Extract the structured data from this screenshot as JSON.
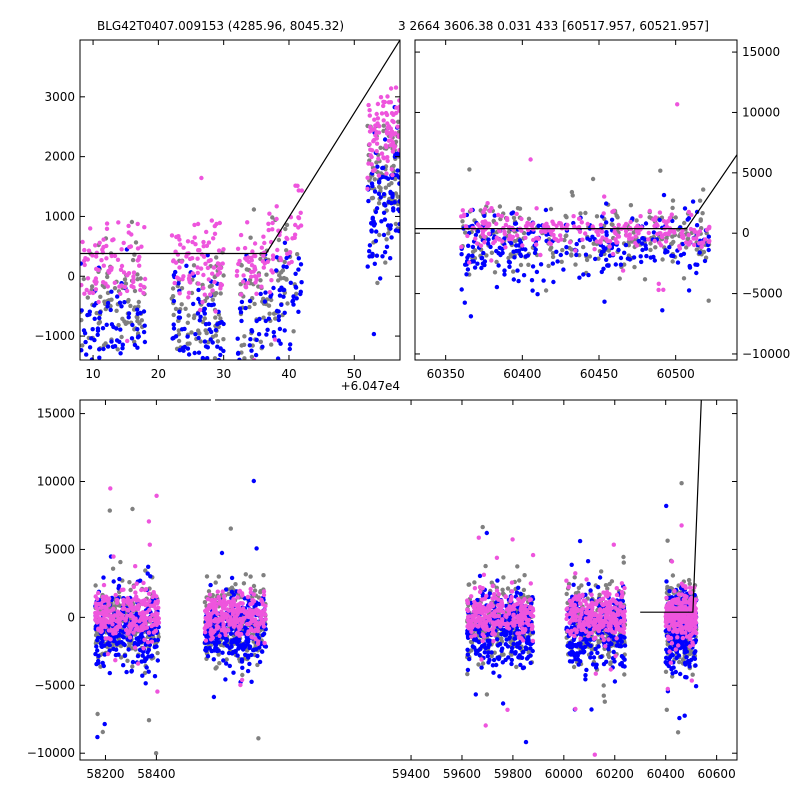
{
  "header": {
    "left": "BLG42T0407.009153 (4285.96, 8045.32)",
    "right": "3 2664 3606.38 0.031 433 [60517.957, 60521.957]"
  },
  "colors": {
    "grey": "#808080",
    "blue": "#0000ff",
    "magenta": "#ee55dd",
    "model": "#000000"
  },
  "chart_data": [
    {
      "id": "top-left",
      "type": "scatter",
      "xlim": [
        60478,
        60527
      ],
      "ylim": [
        -1400,
        3950
      ],
      "offset_label": "+6.047e4",
      "xticks": [
        60480,
        60490,
        60500,
        60510,
        60520
      ],
      "xticklabels": [
        "10",
        "20",
        "30",
        "40",
        "50"
      ],
      "yticks": [
        -1000,
        0,
        1000,
        2000,
        3000
      ],
      "yticklabels": [
        "−1000",
        "0",
        "1000",
        "2000",
        "3000"
      ],
      "groups_x": [
        [
          60478,
          60488
        ],
        [
          60492,
          60500
        ],
        [
          60502,
          60512
        ],
        [
          60522,
          60527
        ]
      ],
      "model": [
        [
          60478,
          380
        ],
        [
          60506.5,
          380
        ],
        [
          60527,
          3950
        ]
      ]
    },
    {
      "id": "top-right",
      "type": "scatter",
      "xlim": [
        60330,
        60540
      ],
      "ylim": [
        -10500,
        16000
      ],
      "yaxis_side": "right",
      "xticks": [
        60350,
        60400,
        60450,
        60500
      ],
      "xticklabels": [
        "60350",
        "60400",
        "60450",
        "60500"
      ],
      "yticks": [
        -10000,
        -5000,
        0,
        5000,
        10000,
        15000
      ],
      "yticklabels": [
        "−10000",
        "−5000",
        "0",
        "5000",
        "10000",
        "15000"
      ],
      "groups_x": [
        [
          60360,
          60522
        ]
      ],
      "model": [
        [
          60330,
          380
        ],
        [
          60507,
          380
        ],
        [
          60540,
          6500
        ]
      ]
    },
    {
      "id": "bottom",
      "type": "scatter",
      "xlim": [
        58100,
        60680
      ],
      "ylim": [
        -10500,
        16000
      ],
      "xticks": [
        58200,
        58400,
        59400,
        59600,
        59800,
        60000,
        60200,
        60400,
        60600
      ],
      "xticklabels": [
        "58200",
        "58400",
        "59400",
        "59600",
        "59800",
        "60000",
        "60200",
        "60400",
        "60600"
      ],
      "yticks": [
        -10000,
        -5000,
        0,
        5000,
        10000,
        15000
      ],
      "yticklabels": [
        "−10000",
        "−5000",
        "0",
        "5000",
        "10000",
        "15000"
      ],
      "groups_x": [
        [
          58160,
          58410
        ],
        [
          58590,
          58830
        ],
        [
          59620,
          59880
        ],
        [
          60010,
          60240
        ],
        [
          60400,
          60520
        ]
      ],
      "model": [
        [
          60300,
          380
        ],
        [
          60507,
          380
        ],
        [
          60540,
          16000
        ]
      ]
    }
  ]
}
